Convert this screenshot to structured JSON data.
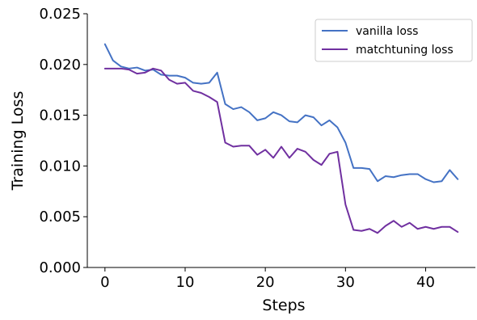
{
  "chart_data": {
    "type": "line",
    "title": "",
    "xlabel": "Steps",
    "ylabel": "Training Loss",
    "xlim": [
      -2.2,
      46.2
    ],
    "ylim": [
      0,
      0.025
    ],
    "xticks": [
      0,
      10,
      20,
      30,
      40
    ],
    "xtick_labels": [
      "0",
      "10",
      "20",
      "30",
      "40"
    ],
    "yticks": [
      0,
      0.005,
      0.01,
      0.015,
      0.02,
      0.025
    ],
    "ytick_labels": [
      "0.000",
      "0.005",
      "0.010",
      "0.015",
      "0.020",
      "0.025"
    ],
    "grid": false,
    "legend_position": "top-right",
    "x": [
      0,
      1,
      2,
      3,
      4,
      5,
      6,
      7,
      8,
      9,
      10,
      11,
      12,
      13,
      14,
      15,
      16,
      17,
      18,
      19,
      20,
      21,
      22,
      23,
      24,
      25,
      26,
      27,
      28,
      29,
      30,
      31,
      32,
      33,
      34,
      35,
      36,
      37,
      38,
      39,
      40,
      41,
      42,
      43,
      44
    ],
    "series": [
      {
        "name": "vanilla loss",
        "color": "#4472c4",
        "values": [
          0.022,
          0.0204,
          0.0198,
          0.0196,
          0.0197,
          0.0194,
          0.0195,
          0.019,
          0.0189,
          0.0189,
          0.0187,
          0.0182,
          0.0181,
          0.0182,
          0.0192,
          0.0161,
          0.0156,
          0.0158,
          0.0153,
          0.0145,
          0.0147,
          0.0153,
          0.015,
          0.0144,
          0.0143,
          0.015,
          0.0148,
          0.014,
          0.0145,
          0.0138,
          0.0123,
          0.0098,
          0.0098,
          0.0097,
          0.0085,
          0.009,
          0.0089,
          0.0091,
          0.0092,
          0.0092,
          0.0087,
          0.0084,
          0.0085,
          0.0096,
          0.0087
        ]
      },
      {
        "name": "matchtuning loss",
        "color": "#7030a0",
        "values": [
          0.0196,
          0.0196,
          0.0196,
          0.0195,
          0.0191,
          0.0192,
          0.0196,
          0.0194,
          0.0185,
          0.0181,
          0.0182,
          0.0174,
          0.0172,
          0.0168,
          0.0163,
          0.0123,
          0.0119,
          0.012,
          0.012,
          0.0111,
          0.0116,
          0.0108,
          0.0119,
          0.0108,
          0.0117,
          0.0114,
          0.0106,
          0.0101,
          0.0112,
          0.0114,
          0.0062,
          0.0037,
          0.0036,
          0.0038,
          0.0034,
          0.0041,
          0.0046,
          0.004,
          0.0044,
          0.0038,
          0.004,
          0.0038,
          0.004,
          0.004,
          0.0035
        ]
      }
    ]
  }
}
